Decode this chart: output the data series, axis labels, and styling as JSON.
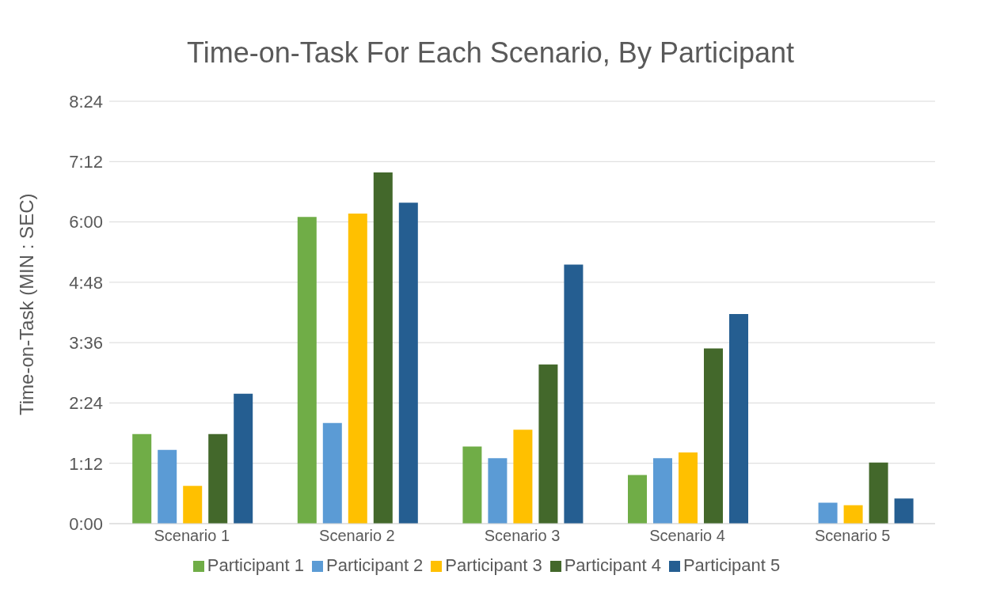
{
  "chart_data": {
    "type": "bar",
    "title": "Time-on-Task For Each Scenario, By Participant",
    "ylabel": "Time-on-Task (MIN : SEC)",
    "categories": [
      "Scenario 1",
      "Scenario 2",
      "Scenario 3",
      "Scenario 4",
      "Scenario 5"
    ],
    "series": [
      {
        "name": "Participant 1",
        "color": "#70ad47",
        "values": [
          107,
          366,
          92,
          58,
          null
        ]
      },
      {
        "name": "Participant 2",
        "color": "#5b9bd5",
        "values": [
          88,
          120,
          78,
          78,
          25
        ]
      },
      {
        "name": "Participant 3",
        "color": "#ffc000",
        "values": [
          45,
          370,
          112,
          85,
          22
        ]
      },
      {
        "name": "Participant 4",
        "color": "#43682b",
        "values": [
          107,
          419,
          190,
          209,
          73
        ]
      },
      {
        "name": "Participant 5",
        "color": "#255e91",
        "values": [
          155,
          383,
          309,
          250,
          30
        ]
      }
    ],
    "ylim": [
      0,
      504
    ],
    "yticks": [
      {
        "value": 0,
        "label": "0:00"
      },
      {
        "value": 72,
        "label": "1:12"
      },
      {
        "value": 144,
        "label": "2:24"
      },
      {
        "value": 216,
        "label": "3:36"
      },
      {
        "value": 288,
        "label": "4:48"
      },
      {
        "value": 360,
        "label": "6:00"
      },
      {
        "value": 432,
        "label": "7:12"
      },
      {
        "value": 504,
        "label": "8:24"
      }
    ],
    "grid": "y",
    "legend": "bottom"
  }
}
